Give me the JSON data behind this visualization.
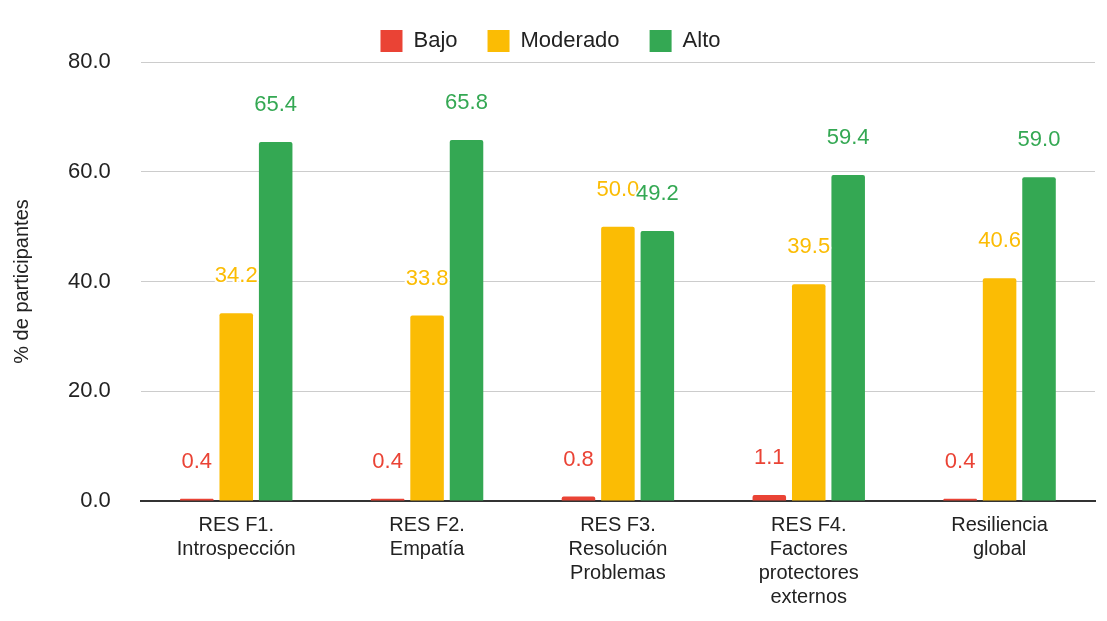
{
  "chart_data": {
    "type": "bar",
    "ylabel": "% de participantes",
    "categories": [
      "RES F1. Introspección",
      "RES F2. Empatía",
      "RES F3. Resolución Problemas",
      "RES F4. Factores protectores externos",
      "Resiliencia global"
    ],
    "series": [
      {
        "name": "Bajo",
        "color": "#ea4335",
        "values": [
          0.4,
          0.4,
          0.8,
          1.1,
          0.4
        ],
        "value_labels": [
          "0.4",
          "0.4",
          "0.8",
          "1.1",
          "0.4"
        ]
      },
      {
        "name": "Moderado",
        "color": "#fbbc04",
        "values": [
          34.2,
          33.8,
          50.0,
          39.5,
          40.6
        ],
        "value_labels": [
          "34.2",
          "33.8",
          "50.0",
          "39.5",
          "40.6"
        ]
      },
      {
        "name": "Alto",
        "color": "#34a853",
        "values": [
          65.4,
          65.8,
          49.2,
          59.4,
          59.0
        ],
        "value_labels": [
          "65.4",
          "65.8",
          "49.2",
          "59.4",
          "59.0"
        ]
      }
    ],
    "ylim": [
      0,
      80
    ],
    "yticks": [
      {
        "value": 0,
        "label": "0.0"
      },
      {
        "value": 20,
        "label": "20.0"
      },
      {
        "value": 40,
        "label": "40.0"
      },
      {
        "value": 60,
        "label": "60.0"
      },
      {
        "value": 80,
        "label": "80.0"
      }
    ],
    "grid": "y",
    "legend": "top"
  }
}
